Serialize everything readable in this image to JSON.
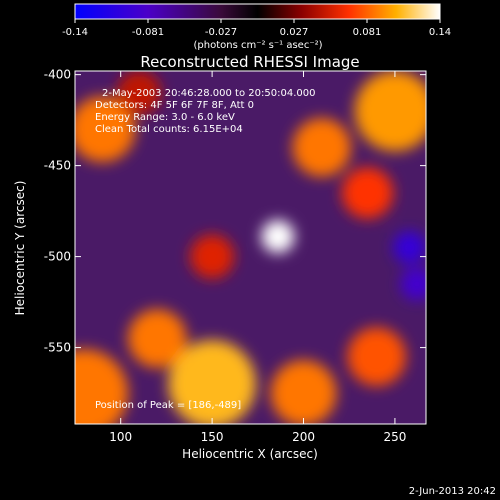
{
  "colorbar": {
    "ticks": [
      "-0.14",
      "-0.081",
      "-0.027",
      "0.027",
      "0.081",
      "0.14"
    ],
    "unit_label": "(photons cm⁻² s⁻¹ asec⁻²)",
    "range": [
      -0.14,
      0.14
    ]
  },
  "chart_data": {
    "type": "heatmap",
    "title": "Reconstructed RHESSI Image",
    "xlabel": "Heliocentric X (arcsec)",
    "ylabel": "Heliocentric Y (arcsec)",
    "xlim": [
      75,
      267
    ],
    "ylim": [
      -592,
      -398
    ],
    "x_ticks": [
      "100",
      "150",
      "200",
      "250"
    ],
    "y_ticks": [
      "-400",
      "-450",
      "-500",
      "-550"
    ],
    "annotations": [
      "2-May-2003 20:46:28.000 to 20:50:04.000",
      "Detectors: 4F 5F 6F 7F 8F, Att 0",
      "Energy Range: 3.0 - 6.0 keV",
      "Clean    Total counts: 6.15E+04"
    ],
    "peak_label": "Position of Peak = [186,-489]",
    "peak": [
      186,
      -489
    ],
    "features": [
      {
        "x": 186,
        "y": -489,
        "value": 0.14,
        "r": 9
      },
      {
        "x": 210,
        "y": -440,
        "value": 0.09,
        "r": 16
      },
      {
        "x": 250,
        "y": -420,
        "value": 0.1,
        "r": 22
      },
      {
        "x": 235,
        "y": -465,
        "value": 0.07,
        "r": 14
      },
      {
        "x": 90,
        "y": -430,
        "value": 0.09,
        "r": 18
      },
      {
        "x": 80,
        "y": -575,
        "value": 0.09,
        "r": 24
      },
      {
        "x": 150,
        "y": -570,
        "value": 0.11,
        "r": 24
      },
      {
        "x": 120,
        "y": -545,
        "value": 0.09,
        "r": 16
      },
      {
        "x": 200,
        "y": -575,
        "value": 0.09,
        "r": 18
      },
      {
        "x": 240,
        "y": -555,
        "value": 0.08,
        "r": 16
      },
      {
        "x": 150,
        "y": -500,
        "value": 0.06,
        "r": 12
      },
      {
        "x": 110,
        "y": -410,
        "value": 0.05,
        "r": 12
      },
      {
        "x": 258,
        "y": -495,
        "value": -0.1,
        "r": 9
      },
      {
        "x": 262,
        "y": -515,
        "value": -0.09,
        "r": 9
      }
    ]
  },
  "footer": {
    "timestamp": "2-Jun-2013 20:42"
  }
}
